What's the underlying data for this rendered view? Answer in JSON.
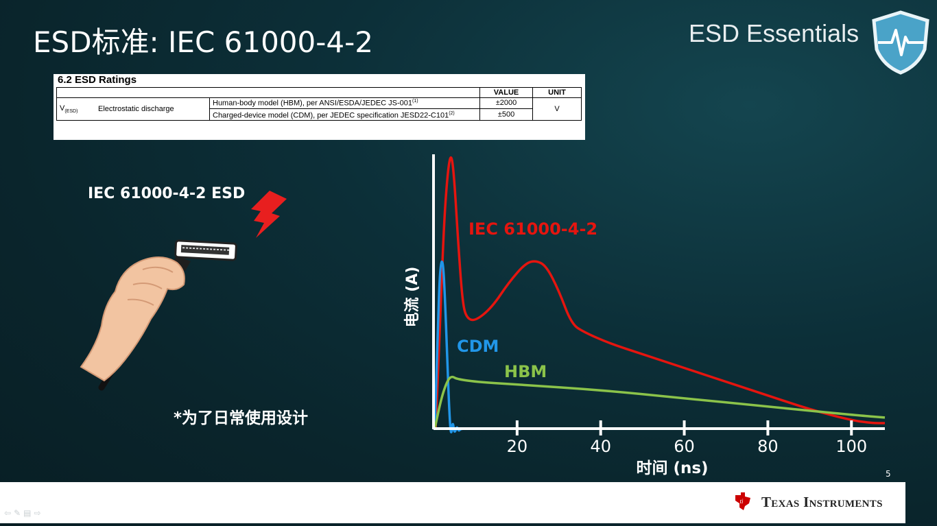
{
  "title": "ESD标准: IEC 61000-4-2",
  "brand": "ESD Essentials",
  "ratings_table": {
    "title": "6.2   ESD Ratings",
    "headers": {
      "value": "VALUE",
      "unit": "UNIT"
    },
    "symbol": "V",
    "symbol_sub": "(ESD)",
    "parameter": "Electrostatic discharge",
    "rows": [
      {
        "model": "Human-body model (HBM), per ANSI/ESDA/JEDEC JS-001",
        "note": "(1)",
        "value": "±2000"
      },
      {
        "model": "Charged-device model (CDM), per JEDEC specification JESD22-C101",
        "note": "(2)",
        "value": "±500"
      }
    ],
    "unit": "V"
  },
  "esd_label": "IEC 61000-4-2 ESD",
  "footnote": "*为了日常使用设计",
  "slide_number": "5",
  "footer_logo_text": "Texas Instruments",
  "nav_icons": [
    "back-arrow-icon",
    "pen-icon",
    "menu-icon",
    "forward-arrow-icon"
  ],
  "colors": {
    "iec": "#e5150f",
    "cdm": "#2196e8",
    "hbm": "#8bc34a",
    "ti_red": "#cc0000"
  },
  "chart_data": {
    "type": "line",
    "xlabel": "时间 (ns)",
    "ylabel": "电流 (A)",
    "xticks": [
      20,
      40,
      60,
      80,
      100
    ],
    "xlim": [
      0,
      108
    ],
    "ylim": [
      0,
      1.0
    ],
    "grid": false,
    "series": [
      {
        "name": "IEC 61000-4-2",
        "color": "#e5150f",
        "points": [
          [
            0.5,
            0
          ],
          [
            1.5,
            0.35
          ],
          [
            2.5,
            0.75
          ],
          [
            3.5,
            0.95
          ],
          [
            4.3,
            1.0
          ],
          [
            5,
            0.9
          ],
          [
            6,
            0.65
          ],
          [
            7,
            0.45
          ],
          [
            8,
            0.4
          ],
          [
            10,
            0.39
          ],
          [
            14,
            0.44
          ],
          [
            18,
            0.53
          ],
          [
            22,
            0.6
          ],
          [
            24.5,
            0.61
          ],
          [
            27,
            0.59
          ],
          [
            30,
            0.5
          ],
          [
            33,
            0.38
          ],
          [
            36,
            0.35
          ],
          [
            42,
            0.31
          ],
          [
            50,
            0.27
          ],
          [
            60,
            0.22
          ],
          [
            70,
            0.17
          ],
          [
            80,
            0.12
          ],
          [
            90,
            0.07
          ],
          [
            100,
            0.03
          ],
          [
            105,
            0.02
          ],
          [
            108,
            0.02
          ]
        ]
      },
      {
        "name": "CDM",
        "color": "#2196e8",
        "points": [
          [
            0.3,
            0
          ],
          [
            1,
            0.35
          ],
          [
            1.6,
            0.6
          ],
          [
            2.3,
            0.61
          ],
          [
            2.8,
            0.45
          ],
          [
            3.3,
            0.25
          ],
          [
            3.8,
            0.05
          ],
          [
            4.2,
            -0.03
          ],
          [
            4.6,
            0.03
          ],
          [
            5,
            -0.02
          ],
          [
            5.6,
            0.01
          ],
          [
            6,
            -0.01
          ],
          [
            6.5,
            0.0
          ],
          [
            9,
            0.0
          ]
        ]
      },
      {
        "name": "HBM",
        "color": "#8bc34a",
        "points": [
          [
            0.3,
            0
          ],
          [
            2,
            0.12
          ],
          [
            3.5,
            0.18
          ],
          [
            4.5,
            0.19
          ],
          [
            5.5,
            0.18
          ],
          [
            10,
            0.17
          ],
          [
            20,
            0.16
          ],
          [
            40,
            0.14
          ],
          [
            60,
            0.11
          ],
          [
            80,
            0.08
          ],
          [
            100,
            0.05
          ],
          [
            108,
            0.04
          ]
        ]
      }
    ]
  }
}
